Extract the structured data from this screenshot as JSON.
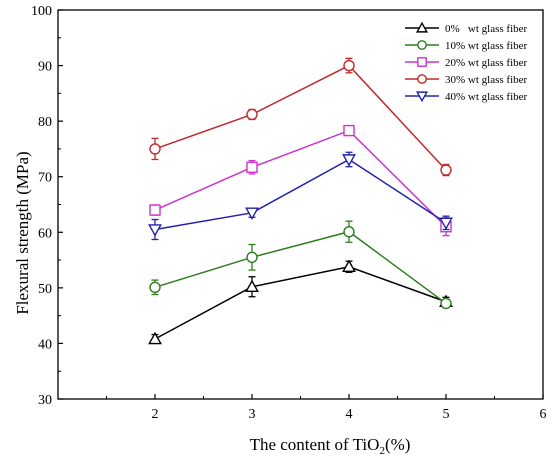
{
  "chart_data": {
    "type": "line",
    "xlabel_main": "The content of TiO",
    "xlabel_sub": "2",
    "xlabel_tail": "(%)",
    "ylabel": "Flexural strength (MPa)",
    "xlim": [
      1,
      6
    ],
    "ylim": [
      30,
      100
    ],
    "xticks": [
      2,
      3,
      4,
      5,
      6
    ],
    "yticks": [
      30,
      40,
      50,
      60,
      70,
      80,
      90,
      100
    ],
    "x": [
      2,
      3,
      4,
      5
    ],
    "legend_position": "top-right",
    "grid": false,
    "series": [
      {
        "name": "0%   wt glass fiber",
        "color": "#000000",
        "marker": "triangle-up",
        "values": [
          40.8,
          50.2,
          53.8,
          47.5
        ],
        "errors": [
          0.8,
          1.8,
          1.0,
          0.8
        ]
      },
      {
        "name": "10% wt glass fiber",
        "color": "#2e7d1f",
        "marker": "circle",
        "values": [
          50.1,
          55.5,
          60.1,
          47.2
        ],
        "errors": [
          1.3,
          2.3,
          1.9,
          0.6
        ]
      },
      {
        "name": "20% wt glass fiber",
        "color": "#cc33cc",
        "marker": "square",
        "values": [
          64.0,
          71.7,
          78.3,
          61.0
        ],
        "errors": [
          0.9,
          1.2,
          0.6,
          1.6
        ]
      },
      {
        "name": "30% wt glass fiber",
        "color": "#c0282a",
        "marker": "circle",
        "values": [
          75.0,
          81.2,
          90.0,
          71.2
        ],
        "errors": [
          1.9,
          0.9,
          1.3,
          1.0
        ]
      },
      {
        "name": "40% wt glass fiber",
        "color": "#2222aa",
        "marker": "triangle-down",
        "values": [
          60.5,
          63.5,
          73.1,
          61.7
        ],
        "errors": [
          1.8,
          0.8,
          1.3,
          1.2
        ]
      }
    ]
  }
}
